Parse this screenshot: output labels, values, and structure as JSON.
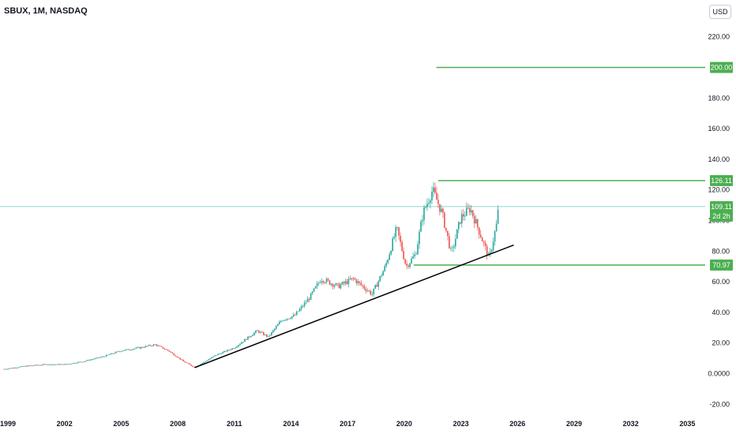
{
  "header": {
    "symbol_line": "SBUX, 1M, NASDAQ",
    "currency_button": "USD"
  },
  "colors": {
    "candle_up": "#26a69a",
    "candle_down": "#ef5350",
    "level_line": "#4caf50",
    "trendline": "#000000",
    "price_badge": "#4caf50",
    "last_price_line": "#7fd6c9"
  },
  "chart_data": {
    "type": "candlestick",
    "title": "SBUX, 1M, NASDAQ",
    "ylim": [
      -20,
      230
    ],
    "y_ticks": [
      "220.00",
      "180.00",
      "160.00",
      "140.00",
      "120.00",
      "100.00",
      "80.00",
      "60.00",
      "40.00",
      "20.00",
      "0.0000",
      "-20.00"
    ],
    "x_ticks": [
      "1999",
      "2002",
      "2005",
      "2008",
      "2011",
      "2014",
      "2017",
      "2020",
      "2023",
      "2026",
      "2029",
      "2032",
      "2035"
    ],
    "price_path": [
      {
        "x": 1998.8,
        "y": 3
      },
      {
        "x": 2000.0,
        "y": 5
      },
      {
        "x": 2001.0,
        "y": 6
      },
      {
        "x": 2002.0,
        "y": 6
      },
      {
        "x": 2003.0,
        "y": 8
      },
      {
        "x": 2004.0,
        "y": 11
      },
      {
        "x": 2005.0,
        "y": 15
      },
      {
        "x": 2006.0,
        "y": 17
      },
      {
        "x": 2006.8,
        "y": 19
      },
      {
        "x": 2007.5,
        "y": 15
      },
      {
        "x": 2008.3,
        "y": 8
      },
      {
        "x": 2008.9,
        "y": 4
      },
      {
        "x": 2010.0,
        "y": 12
      },
      {
        "x": 2011.0,
        "y": 17
      },
      {
        "x": 2012.2,
        "y": 28
      },
      {
        "x": 2012.8,
        "y": 24
      },
      {
        "x": 2013.5,
        "y": 35
      },
      {
        "x": 2014.2,
        "y": 38
      },
      {
        "x": 2015.0,
        "y": 50
      },
      {
        "x": 2015.6,
        "y": 62
      },
      {
        "x": 2016.5,
        "y": 57
      },
      {
        "x": 2017.3,
        "y": 62
      },
      {
        "x": 2018.3,
        "y": 52
      },
      {
        "x": 2019.0,
        "y": 70
      },
      {
        "x": 2019.6,
        "y": 95
      },
      {
        "x": 2020.1,
        "y": 70
      },
      {
        "x": 2020.6,
        "y": 78
      },
      {
        "x": 2021.0,
        "y": 105
      },
      {
        "x": 2021.5,
        "y": 120
      },
      {
        "x": 2022.0,
        "y": 105
      },
      {
        "x": 2022.5,
        "y": 78
      },
      {
        "x": 2023.0,
        "y": 102
      },
      {
        "x": 2023.5,
        "y": 108
      },
      {
        "x": 2024.0,
        "y": 92
      },
      {
        "x": 2024.5,
        "y": 75
      },
      {
        "x": 2024.9,
        "y": 98
      },
      {
        "x": 2025.0,
        "y": 109
      }
    ],
    "horizontal_levels": [
      {
        "price": 200.0,
        "label": "200.00",
        "from_year": 2021.7
      },
      {
        "price": 126.11,
        "label": "126.11",
        "from_year": 2021.8
      },
      {
        "price": 70.97,
        "label": "70.97",
        "from_year": 2020.5
      }
    ],
    "trendline": {
      "from": {
        "x": 2008.9,
        "y": 4
      },
      "to": {
        "x": 2025.8,
        "y": 84
      }
    },
    "last_price": {
      "value": "109.11",
      "countdown": "2d 2h"
    }
  }
}
